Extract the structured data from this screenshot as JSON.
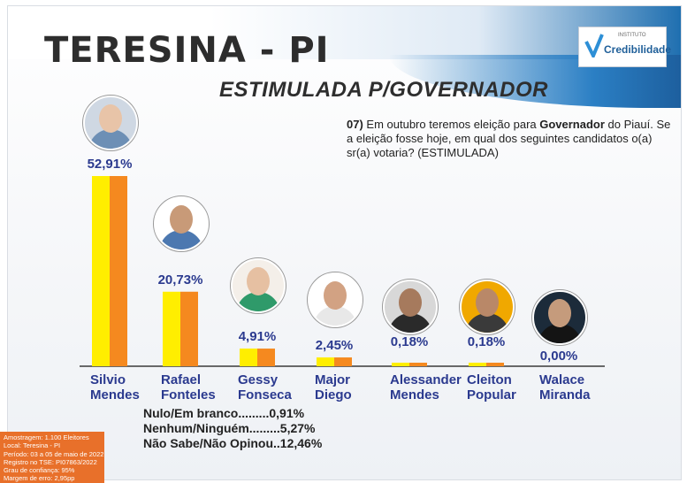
{
  "header": {
    "city_title": "TERESINA - PI",
    "subtitle": "ESTIMULADA P/GOVERNADOR",
    "logo_instituto": "INSTITUTO",
    "logo_name": "Credibilidade"
  },
  "question": {
    "number": "07)",
    "text_before": " Em outubro teremos eleição para ",
    "emphasis": "Governador",
    "text_after": " do Piauí. Se a eleição fosse hoje, em qual dos seguintes candidatos o(a) sr(a) votaria? (ESTIMULADA)"
  },
  "chart_data": {
    "type": "bar",
    "categories": [
      "Silvio Mendes",
      "Rafael Fonteles",
      "Gessy Fonseca",
      "Major Diego",
      "Alessander Mendes",
      "Cleiton Popular",
      "Walace Miranda"
    ],
    "name_lines": [
      [
        "Silvio",
        "Mendes"
      ],
      [
        "Rafael",
        "Fonteles"
      ],
      [
        "Gessy",
        "Fonseca"
      ],
      [
        "Major",
        "Diego"
      ],
      [
        "Alessander",
        "Mendes"
      ],
      [
        "Cleiton",
        "Popular"
      ],
      [
        "Walace",
        "Miranda"
      ]
    ],
    "values": [
      52.91,
      20.73,
      4.91,
      2.45,
      0.18,
      0.18,
      0.0
    ],
    "labels": [
      "52,91%",
      "20,73%",
      "4,91%",
      "2,45%",
      "0,18%",
      "0,18%",
      "0,00%"
    ],
    "ylim": [
      0,
      55
    ],
    "colors": {
      "front": "#ffee00",
      "back": "#f5891f"
    },
    "xlabel": "",
    "ylabel": ""
  },
  "others": {
    "nulo": "Nulo/Em branco.........0,91%",
    "nenhum": "Nenhum/Ninguém.........5,27%",
    "nao_sabe": "Não Sabe/Não Opinou..12,46%"
  },
  "meta": {
    "amostragem": "Amostragem: 1.100 Eleitores",
    "local": "Local: Teresina - PI",
    "periodo": "Período: 03 a 05 de maio de 2022",
    "registro": "Registro no TSE: PI07863/2022",
    "confianca": "Grau de confiança: 95%",
    "margem": "Margem de erro: 2,95pp"
  },
  "colors": {
    "label_blue": "#2b3a8f",
    "meta_orange": "#e8702a",
    "header_blue": "#1f6fb0"
  }
}
